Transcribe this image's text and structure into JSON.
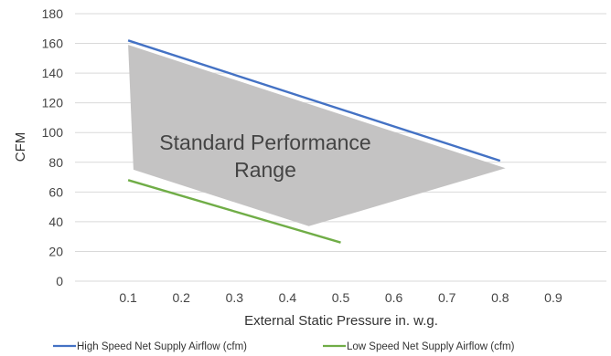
{
  "chart_data": {
    "type": "line",
    "xlabel": "External Static Pressure in. w.g.",
    "ylabel": "CFM",
    "xlim": [
      0,
      1.0
    ],
    "ylim": [
      0,
      180
    ],
    "x_ticks": [
      "0.1",
      "0.2",
      "0.3",
      "0.4",
      "0.5",
      "0.6",
      "0.7",
      "0.8",
      "0.9"
    ],
    "y_ticks": [
      "0",
      "20",
      "40",
      "60",
      "80",
      "100",
      "120",
      "140",
      "160",
      "180"
    ],
    "grid": true,
    "legend_position": "bottom",
    "series": [
      {
        "name": "High Speed Net Supply Airflow (cfm)",
        "color": "#4472C4",
        "x": [
          0.1,
          0.8
        ],
        "y": [
          162,
          81
        ]
      },
      {
        "name": "Low Speed Net Supply Airflow (cfm)",
        "color": "#70AD47",
        "x": [
          0.1,
          0.5
        ],
        "y": [
          68,
          26
        ]
      }
    ],
    "range_region": {
      "label_lines": [
        "Standard Performance",
        "Range"
      ],
      "color": "#c4c3c3",
      "points": [
        [
          0.1,
          159
        ],
        [
          0.81,
          76
        ],
        [
          0.44,
          37
        ],
        [
          0.11,
          75
        ]
      ]
    }
  }
}
